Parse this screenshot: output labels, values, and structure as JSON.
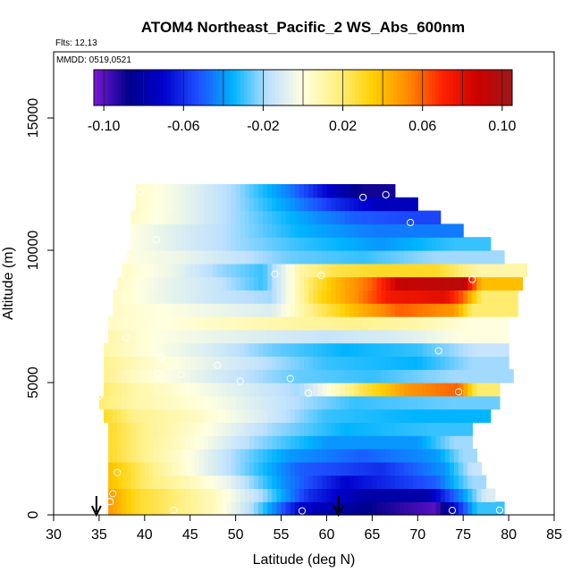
{
  "chart_data": {
    "type": "heatmap",
    "title": "ATOM4 Northeast_Pacific_2 WS_Abs_600nm",
    "flights_label": "Flts: 12,13",
    "dates_label": "MMDD: 0519,0521",
    "xlabel": "Latitude (deg N)",
    "ylabel": "Altitude (m)",
    "xlim": [
      30,
      85
    ],
    "ylim": [
      0,
      17500
    ],
    "x_ticks": [
      30,
      35,
      40,
      45,
      50,
      55,
      60,
      65,
      70,
      75,
      80,
      85
    ],
    "y_ticks": [
      0,
      5000,
      10000,
      15000
    ],
    "grid": false,
    "colorbar": {
      "placement": "top",
      "min": -0.105,
      "max": 0.105,
      "ticks": [
        -0.1,
        -0.06,
        -0.02,
        0.02,
        0.06,
        0.1
      ],
      "tick_labels": [
        "-0.10",
        "-0.06",
        "-0.02",
        "0.02",
        "0.06",
        "0.10"
      ],
      "colors": [
        "#7b18d8",
        "#00008b",
        "#0000cd",
        "#1e50ff",
        "#00b4ff",
        "#bde0ff",
        "#ffffe0",
        "#fff080",
        "#ffd000",
        "#ff8c00",
        "#ff2200",
        "#cc0000",
        "#a01818"
      ]
    },
    "profile_rows": [
      {
        "alt_min": 0,
        "alt_max": 500,
        "segments": [
          [
            36.0,
            0.05
          ],
          [
            39.0,
            0.03
          ],
          [
            43.0,
            0.02
          ],
          [
            48.0,
            0.005
          ],
          [
            52.0,
            -0.02
          ],
          [
            57.0,
            -0.07
          ],
          [
            66.0,
            -0.09
          ],
          [
            72.0,
            -0.1
          ],
          [
            76.5,
            -0.03
          ],
          [
            79.5,
            null
          ]
        ]
      },
      {
        "alt_min": 500,
        "alt_max": 1000,
        "segments": [
          [
            36.0,
            0.05
          ],
          [
            39.0,
            0.03
          ],
          [
            43.0,
            0.02
          ],
          [
            48.0,
            0.005
          ],
          [
            53.0,
            -0.02
          ],
          [
            58.0,
            -0.06
          ],
          [
            64.0,
            -0.08
          ],
          [
            71.0,
            -0.08
          ],
          [
            75.0,
            -0.04
          ],
          [
            77.5,
            -0.01
          ],
          [
            78.5,
            null
          ]
        ]
      },
      {
        "alt_min": 1000,
        "alt_max": 1500,
        "segments": [
          [
            36.0,
            0.04
          ],
          [
            40.0,
            0.02
          ],
          [
            44.0,
            0.01
          ],
          [
            49.0,
            -0.005
          ],
          [
            55.0,
            -0.04
          ],
          [
            62.0,
            -0.07
          ],
          [
            72.0,
            -0.05
          ],
          [
            76.0,
            -0.02
          ],
          [
            77.5,
            null
          ]
        ]
      },
      {
        "alt_min": 1500,
        "alt_max": 2000,
        "segments": [
          [
            36.0,
            0.04
          ],
          [
            40.0,
            0.02
          ],
          [
            45.0,
            0.0
          ],
          [
            50.0,
            -0.02
          ],
          [
            57.0,
            -0.05
          ],
          [
            66.0,
            -0.06
          ],
          [
            73.0,
            -0.04
          ],
          [
            76.0,
            -0.015
          ],
          [
            77.0,
            null
          ]
        ]
      },
      {
        "alt_min": 2000,
        "alt_max": 2500,
        "segments": [
          [
            36.0,
            0.03
          ],
          [
            40.0,
            0.015
          ],
          [
            45.0,
            0.0
          ],
          [
            50.0,
            -0.02
          ],
          [
            56.0,
            -0.04
          ],
          [
            64.0,
            -0.05
          ],
          [
            72.0,
            -0.04
          ],
          [
            75.0,
            -0.02
          ],
          [
            76.5,
            null
          ]
        ]
      },
      {
        "alt_min": 2500,
        "alt_max": 3000,
        "segments": [
          [
            36.0,
            0.03
          ],
          [
            40.0,
            0.015
          ],
          [
            46.0,
            0.0
          ],
          [
            52.0,
            -0.02
          ],
          [
            60.0,
            -0.04
          ],
          [
            70.0,
            -0.04
          ],
          [
            74.0,
            -0.02
          ],
          [
            76.0,
            null
          ]
        ]
      },
      {
        "alt_min": 3000,
        "alt_max": 3500,
        "segments": [
          [
            36.0,
            0.03
          ],
          [
            40.0,
            0.015
          ],
          [
            47.0,
            0.0
          ],
          [
            54.0,
            -0.02
          ],
          [
            62.0,
            -0.035
          ],
          [
            71.0,
            -0.03
          ],
          [
            76.0,
            null
          ]
        ]
      },
      {
        "alt_min": 3500,
        "alt_max": 4000,
        "segments": [
          [
            35.5,
            0.03
          ],
          [
            39.0,
            0.015
          ],
          [
            46.0,
            0.005
          ],
          [
            53.0,
            -0.01
          ],
          [
            60.0,
            -0.03
          ],
          [
            70.0,
            -0.035
          ],
          [
            78.0,
            null
          ]
        ]
      },
      {
        "alt_min": 4000,
        "alt_max": 4500,
        "segments": [
          [
            35.0,
            0.02
          ],
          [
            39.0,
            0.01
          ],
          [
            47.0,
            0.0
          ],
          [
            55.0,
            -0.015
          ],
          [
            63.0,
            -0.03
          ],
          [
            74.0,
            -0.025
          ],
          [
            79.0,
            null
          ]
        ]
      },
      {
        "alt_min": 4500,
        "alt_max": 5000,
        "segments": [
          [
            35.5,
            0.02
          ],
          [
            39.0,
            0.01
          ],
          [
            45.0,
            0.0
          ],
          [
            51.0,
            -0.01
          ],
          [
            57.0,
            -0.02
          ],
          [
            61.0,
            0.005
          ],
          [
            64.0,
            0.025
          ],
          [
            69.0,
            0.05
          ],
          [
            74.5,
            0.06
          ],
          [
            76.5,
            0.02
          ],
          [
            79.0,
            null
          ]
        ]
      },
      {
        "alt_min": 5000,
        "alt_max": 5500,
        "segments": [
          [
            35.5,
            0.015
          ],
          [
            39.0,
            0.005
          ],
          [
            45.0,
            -0.005
          ],
          [
            50.0,
            -0.015
          ],
          [
            56.0,
            -0.025
          ],
          [
            65.0,
            -0.03
          ],
          [
            74.0,
            -0.02
          ],
          [
            80.5,
            null
          ]
        ]
      },
      {
        "alt_min": 5500,
        "alt_max": 6000,
        "segments": [
          [
            35.5,
            0.015
          ],
          [
            40.0,
            0.005
          ],
          [
            46.0,
            -0.005
          ],
          [
            52.0,
            -0.015
          ],
          [
            60.0,
            -0.03
          ],
          [
            70.0,
            -0.035
          ],
          [
            76.0,
            -0.02
          ],
          [
            80.0,
            null
          ]
        ]
      },
      {
        "alt_min": 6000,
        "alt_max": 6500,
        "segments": [
          [
            35.5,
            0.01
          ],
          [
            41.0,
            0.0
          ],
          [
            47.0,
            -0.01
          ],
          [
            54.0,
            -0.025
          ],
          [
            62.0,
            -0.035
          ],
          [
            70.0,
            -0.03
          ],
          [
            76.5,
            -0.015
          ],
          [
            80.0,
            null
          ]
        ]
      },
      {
        "alt_min": 6500,
        "alt_max": 7000,
        "segments": [
          [
            36.0,
            0.01
          ],
          [
            41.0,
            0.0
          ],
          [
            47.0,
            -0.005
          ],
          [
            53.0,
            -0.01
          ],
          [
            60.0,
            -0.015
          ],
          [
            68.0,
            -0.01
          ],
          [
            75.0,
            0.0
          ],
          [
            80.0,
            null
          ]
        ]
      },
      {
        "alt_min": 7000,
        "alt_max": 7500,
        "segments": [
          [
            36.0,
            0.005
          ],
          [
            42.0,
            0.0
          ],
          [
            48.0,
            0.005
          ],
          [
            55.0,
            0.01
          ],
          [
            63.0,
            0.015
          ],
          [
            70.0,
            0.01
          ],
          [
            76.0,
            0.0
          ],
          [
            80.0,
            null
          ]
        ]
      },
      {
        "alt_min": 7500,
        "alt_max": 8000,
        "segments": [
          [
            36.5,
            0.005
          ],
          [
            42.0,
            0.0
          ],
          [
            48.0,
            -0.005
          ],
          [
            54.0,
            -0.01
          ],
          [
            59.0,
            0.02
          ],
          [
            63.0,
            0.04
          ],
          [
            68.0,
            0.06
          ],
          [
            74.0,
            0.05
          ],
          [
            76.0,
            0.02
          ],
          [
            81.0,
            null
          ]
        ]
      },
      {
        "alt_min": 8000,
        "alt_max": 8500,
        "segments": [
          [
            36.5,
            0.005
          ],
          [
            42.0,
            -0.005
          ],
          [
            48.0,
            -0.015
          ],
          [
            54.0,
            -0.02
          ],
          [
            59.0,
            0.03
          ],
          [
            63.0,
            0.05
          ],
          [
            67.0,
            0.075
          ],
          [
            73.0,
            0.08
          ],
          [
            75.0,
            0.06
          ],
          [
            77.0,
            0.02
          ],
          [
            81.0,
            null
          ]
        ]
      },
      {
        "alt_min": 8500,
        "alt_max": 9000,
        "segments": [
          [
            37.0,
            0.005
          ],
          [
            42.0,
            -0.005
          ],
          [
            48.0,
            -0.015
          ],
          [
            53.0,
            -0.03
          ],
          [
            58.0,
            0.02
          ],
          [
            61.0,
            0.04
          ],
          [
            65.0,
            0.06
          ],
          [
            68.0,
            0.09
          ],
          [
            75.0,
            0.095
          ],
          [
            77.0,
            0.04
          ],
          [
            81.5,
            null
          ]
        ]
      },
      {
        "alt_min": 9000,
        "alt_max": 9500,
        "segments": [
          [
            37.5,
            0.005
          ],
          [
            43.0,
            -0.005
          ],
          [
            48.0,
            -0.02
          ],
          [
            53.0,
            -0.03
          ],
          [
            57.0,
            0.01
          ],
          [
            61.0,
            0.025
          ],
          [
            66.0,
            0.03
          ],
          [
            72.0,
            0.03
          ],
          [
            77.0,
            0.01
          ],
          [
            82.0,
            null
          ]
        ]
      },
      {
        "alt_min": 9500,
        "alt_max": 10000,
        "segments": [
          [
            38.0,
            0.0
          ],
          [
            44.0,
            -0.005
          ],
          [
            50.0,
            -0.015
          ],
          [
            56.0,
            -0.025
          ],
          [
            64.0,
            -0.03
          ],
          [
            72.0,
            -0.02
          ],
          [
            79.5,
            null
          ]
        ]
      },
      {
        "alt_min": 10000,
        "alt_max": 10500,
        "segments": [
          [
            38.5,
            0.0
          ],
          [
            44.0,
            -0.01
          ],
          [
            50.0,
            -0.02
          ],
          [
            57.0,
            -0.03
          ],
          [
            66.0,
            -0.04
          ],
          [
            74.0,
            -0.03
          ],
          [
            78.0,
            null
          ]
        ]
      },
      {
        "alt_min": 10500,
        "alt_max": 11000,
        "segments": [
          [
            38.5,
            0.0
          ],
          [
            44.0,
            -0.01
          ],
          [
            50.0,
            -0.02
          ],
          [
            57.0,
            -0.035
          ],
          [
            65.0,
            -0.045
          ],
          [
            75.0,
            null
          ]
        ]
      },
      {
        "alt_min": 11000,
        "alt_max": 11500,
        "segments": [
          [
            38.5,
            0.005
          ],
          [
            44.0,
            -0.005
          ],
          [
            50.0,
            -0.02
          ],
          [
            56.0,
            -0.035
          ],
          [
            63.0,
            -0.05
          ],
          [
            70.0,
            -0.055
          ],
          [
            72.5,
            null
          ]
        ]
      },
      {
        "alt_min": 11500,
        "alt_max": 12000,
        "segments": [
          [
            39.0,
            0.005
          ],
          [
            44.0,
            -0.005
          ],
          [
            50.0,
            -0.02
          ],
          [
            56.0,
            -0.04
          ],
          [
            61.0,
            -0.06
          ],
          [
            66.0,
            -0.075
          ],
          [
            70.0,
            null
          ]
        ]
      },
      {
        "alt_min": 12000,
        "alt_max": 12500,
        "segments": [
          [
            39.0,
            0.005
          ],
          [
            44.0,
            -0.005
          ],
          [
            50.0,
            -0.02
          ],
          [
            56.0,
            -0.045
          ],
          [
            61.0,
            -0.075
          ],
          [
            64.0,
            -0.09
          ],
          [
            67.5,
            null
          ]
        ]
      }
    ],
    "sample_points": [
      [
        36.2,
        500
      ],
      [
        36.5,
        800
      ],
      [
        37.0,
        1600
      ],
      [
        43.2,
        180
      ],
      [
        57.3,
        150
      ],
      [
        73.8,
        170
      ],
      [
        79.0,
        180
      ],
      [
        35.0,
        4500
      ],
      [
        58.0,
        4600
      ],
      [
        74.5,
        4650
      ],
      [
        80.0,
        4400
      ],
      [
        41.5,
        5350
      ],
      [
        44.0,
        5300
      ],
      [
        48.0,
        5650
      ],
      [
        50.5,
        5050
      ],
      [
        56.0,
        5150
      ],
      [
        72.3,
        6200
      ],
      [
        38.0,
        6700
      ],
      [
        41.8,
        5950
      ],
      [
        54.3,
        9100
      ],
      [
        59.4,
        9050
      ],
      [
        76.0,
        8900
      ],
      [
        41.3,
        10400
      ],
      [
        69.2,
        11050
      ],
      [
        64.0,
        12000
      ],
      [
        66.5,
        12100
      ],
      [
        39.5,
        12200
      ]
    ],
    "flight_marker_latitudes": [
      34.7,
      61.3
    ]
  }
}
